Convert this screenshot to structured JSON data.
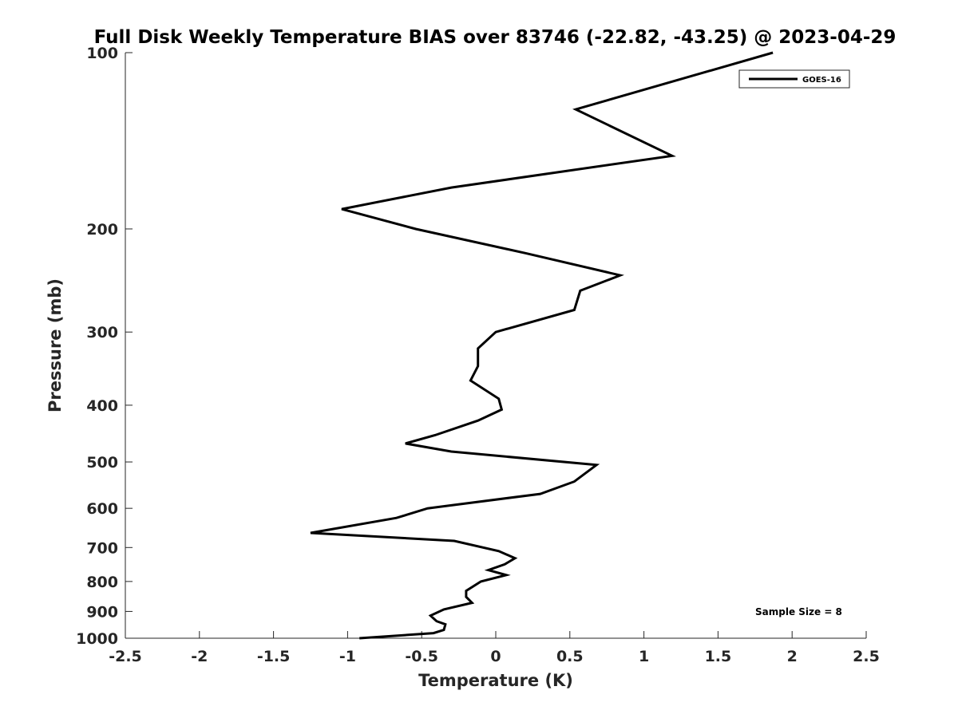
{
  "chart_data": {
    "type": "line",
    "title": "Full Disk Weekly Temperature BIAS over 83746 (-22.82, -43.25) @ 2023-04-29",
    "xlabel": "Temperature (K)",
    "ylabel": "Pressure (mb)",
    "xlim": [
      -2.5,
      2.5
    ],
    "ylim": [
      100,
      1000
    ],
    "y_scale": "log",
    "y_reversed": true,
    "grid": false,
    "legend_position": "top-right",
    "x_ticks": [
      -2.5,
      -2,
      -1.5,
      -1,
      -0.5,
      0,
      0.5,
      1,
      1.5,
      2,
      2.5
    ],
    "x_tick_labels": [
      "-2.5",
      "-2",
      "-1.5",
      "-1",
      "-0.5",
      "0",
      "0.5",
      "1",
      "1.5",
      "2",
      "2.5"
    ],
    "y_ticks": [
      100,
      200,
      300,
      400,
      500,
      600,
      700,
      800,
      900,
      1000
    ],
    "y_tick_labels": [
      "100",
      "200",
      "300",
      "400",
      "500",
      "600",
      "700",
      "800",
      "900",
      "1000"
    ],
    "series": [
      {
        "name": "GOES-16",
        "color": "#000000",
        "points": [
          [
            1.87,
            100
          ],
          [
            0.54,
            125
          ],
          [
            1.19,
            150
          ],
          [
            -0.3,
            170
          ],
          [
            -1.04,
            185
          ],
          [
            -0.54,
            200
          ],
          [
            0.2,
            220
          ],
          [
            0.84,
            240
          ],
          [
            0.57,
            255
          ],
          [
            0.53,
            275
          ],
          [
            0.0,
            300
          ],
          [
            -0.12,
            320
          ],
          [
            -0.12,
            343
          ],
          [
            -0.17,
            363
          ],
          [
            0.02,
            390
          ],
          [
            0.04,
            407
          ],
          [
            -0.12,
            425
          ],
          [
            -0.41,
            450
          ],
          [
            -0.61,
            465
          ],
          [
            -0.3,
            480
          ],
          [
            0.68,
            506
          ],
          [
            0.53,
            540
          ],
          [
            0.3,
            567
          ],
          [
            -0.46,
            600
          ],
          [
            -0.67,
            623
          ],
          [
            -1.25,
            661
          ],
          [
            -0.28,
            682
          ],
          [
            0.02,
            710
          ],
          [
            0.13,
            730
          ],
          [
            0.06,
            748
          ],
          [
            -0.05,
            765
          ],
          [
            0.07,
            780
          ],
          [
            -0.1,
            800
          ],
          [
            -0.2,
            830
          ],
          [
            -0.2,
            850
          ],
          [
            -0.16,
            870
          ],
          [
            -0.35,
            893
          ],
          [
            -0.44,
            915
          ],
          [
            -0.4,
            935
          ],
          [
            -0.34,
            947
          ],
          [
            -0.35,
            968
          ],
          [
            -0.42,
            980
          ],
          [
            -0.92,
            1000
          ]
        ]
      }
    ],
    "annotation": "Sample Size = 8"
  }
}
